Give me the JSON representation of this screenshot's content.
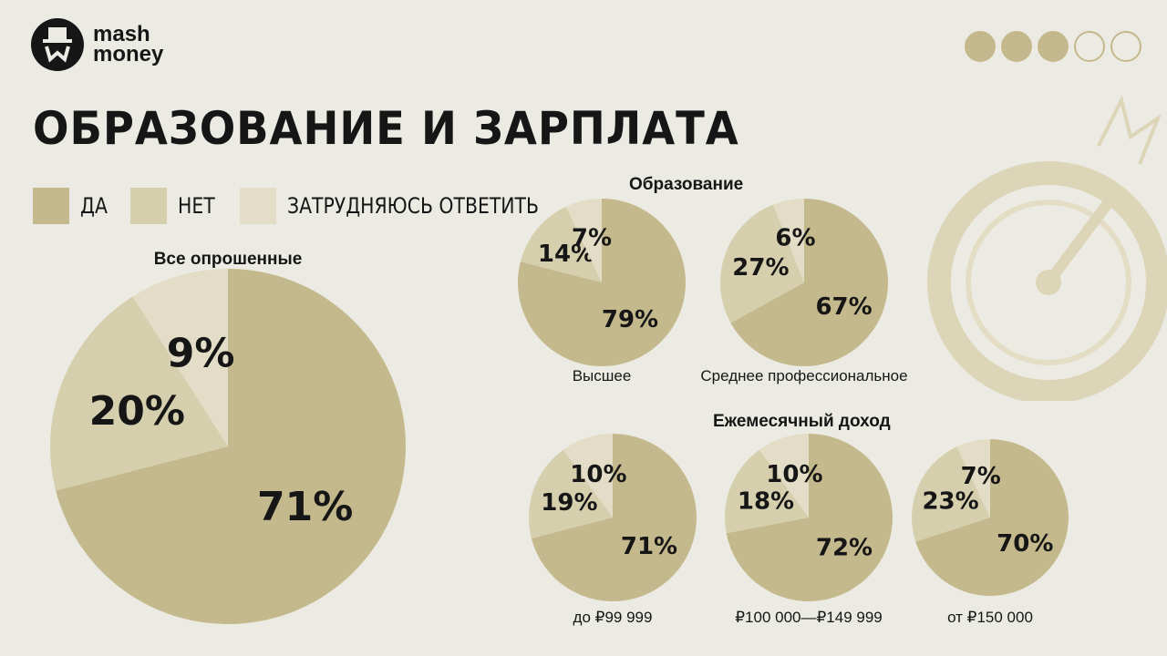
{
  "header": {
    "logo_text_line1": "mash",
    "logo_text_line2": "money",
    "title": "ОБРАЗОВАНИЕ И ЗАРПЛАТА",
    "page_dots": {
      "total": 5,
      "filled": 3
    }
  },
  "legend": [
    {
      "label": "ДА",
      "color": "#c4b98c"
    },
    {
      "label": "НЕТ",
      "color": "#d6cfae"
    },
    {
      "label": "ЗАТРУДНЯЮСЬ ОТВЕТИТЬ",
      "color": "#e3ddc7"
    }
  ],
  "sections": {
    "education": "Образование",
    "income": "Ежемесячный доход"
  },
  "chart_data": [
    {
      "type": "pie",
      "title": "Все опрошенные",
      "label": "",
      "categories": [
        "ДА",
        "НЕТ",
        "ЗАТРУДНЯЮСЬ ОТВЕТИТЬ"
      ],
      "values": [
        71,
        20,
        9
      ]
    },
    {
      "type": "pie",
      "title": "",
      "label": "Высшее",
      "categories": [
        "ДА",
        "НЕТ",
        "ЗАТРУДНЯЮСЬ ОТВЕТИТЬ"
      ],
      "values": [
        79,
        14,
        7
      ]
    },
    {
      "type": "pie",
      "title": "",
      "label": "Среднее профессиональное",
      "categories": [
        "ДА",
        "НЕТ",
        "ЗАТРУДНЯЮСЬ ОТВЕТИТЬ"
      ],
      "values": [
        67,
        27,
        6
      ]
    },
    {
      "type": "pie",
      "title": "",
      "label": "до ₽99 999",
      "categories": [
        "ДА",
        "НЕТ",
        "ЗАТРУДНЯЮСЬ ОТВЕТИТЬ"
      ],
      "values": [
        71,
        19,
        10
      ]
    },
    {
      "type": "pie",
      "title": "",
      "label": "₽100 000—₽149 999",
      "categories": [
        "ДА",
        "НЕТ",
        "ЗАТРУДНЯЮСЬ ОТВЕТИТЬ"
      ],
      "values": [
        72,
        18,
        10
      ]
    },
    {
      "type": "pie",
      "title": "",
      "label": "от ₽150 000",
      "categories": [
        "ДА",
        "НЕТ",
        "ЗАТРУДНЯЮСЬ ОТВЕТИТЬ"
      ],
      "values": [
        70,
        23,
        7
      ]
    }
  ]
}
